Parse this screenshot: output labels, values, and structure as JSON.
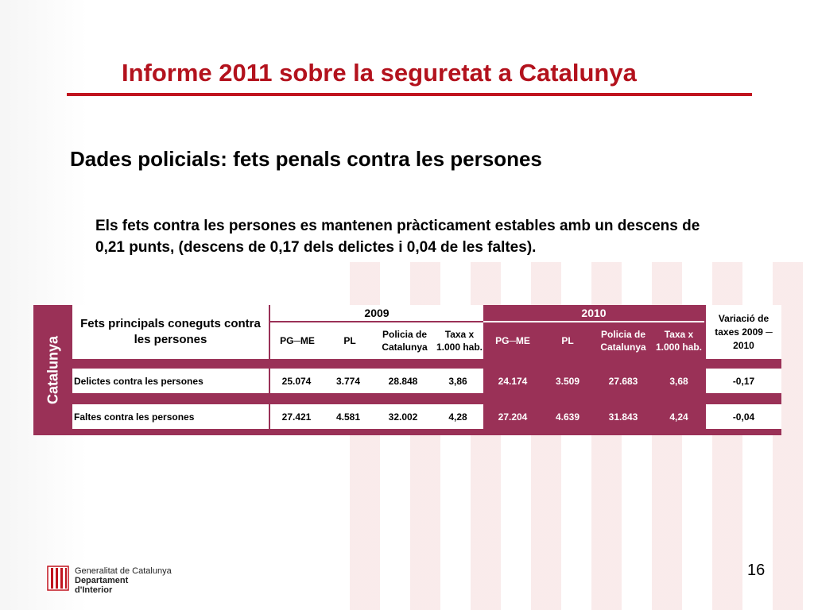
{
  "title": "Informe 2011 sobre la seguretat a Catalunya",
  "subtitle": "Dades policials: fets penals contra les persones",
  "body": "Els fets contra les persones es mantenen pràcticament estables amb un descens de 0,21 punts, (descens de 0,17 dels delictes i 0,04 de les faltes).",
  "table": {
    "side_label": "Catalunya",
    "header_fets": "Fets principals coneguts contra les persones",
    "year_2009": "2009",
    "year_2010": "2010",
    "sub_cols": {
      "pgme": "PG─ME",
      "pl": "PL",
      "pc": "Policia de Catalunya",
      "taxa": "Taxa x 1.000 hab."
    },
    "variacio": "Variació de taxes 2009 ─ 2010",
    "rows": [
      {
        "label": "Delictes contra les persones",
        "y2009": [
          "25.074",
          "3.774",
          "28.848",
          "3,86"
        ],
        "y2010": [
          "24.174",
          "3.509",
          "27.683",
          "3,68"
        ],
        "variacio": "-0,17"
      },
      {
        "label": "Faltes contra les persones",
        "y2009": [
          "27.421",
          "4.581",
          "32.002",
          "4,28"
        ],
        "y2010": [
          "27.204",
          "4.639",
          "31.843",
          "4,24"
        ],
        "variacio": "-0,04"
      }
    ]
  },
  "footer": {
    "logo_line1": "Generalitat de Catalunya",
    "logo_line2": "Departament",
    "logo_line3": "d'Interior",
    "page_number": "16"
  },
  "colors": {
    "title_red": "#b3121d",
    "table_purple": "#9a3157"
  }
}
